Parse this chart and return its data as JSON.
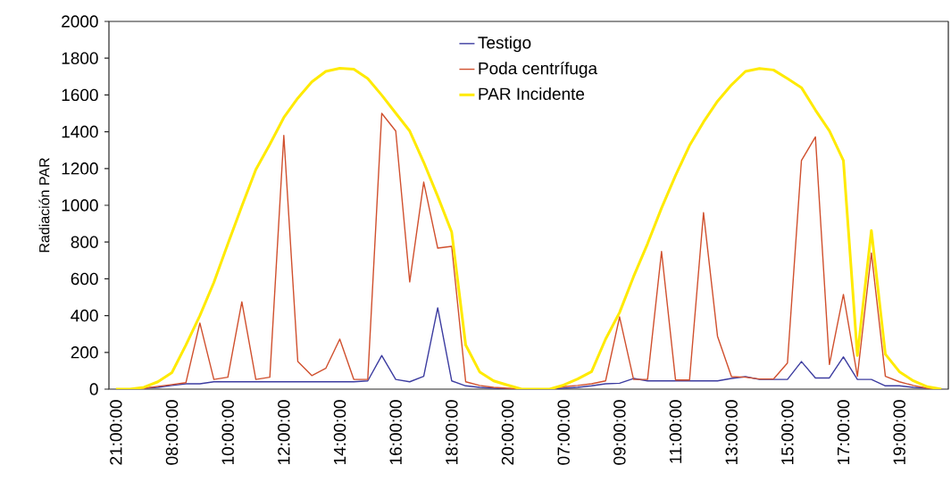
{
  "chart_data": {
    "type": "line",
    "ylabel": "Radiación PAR",
    "categories": [
      "21:00:00",
      null,
      null,
      null,
      "08:00:00",
      null,
      null,
      null,
      "10:00:00",
      null,
      null,
      null,
      "12:00:00",
      null,
      null,
      null,
      "14:00:00",
      null,
      null,
      null,
      "16:00:00",
      null,
      null,
      null,
      "18:00:00",
      null,
      null,
      null,
      "20:00:00",
      null,
      null,
      null,
      "07:00:00",
      null,
      null,
      null,
      "09:00:00",
      null,
      null,
      null,
      "11:00:00",
      null,
      null,
      null,
      "13:00:00",
      null,
      null,
      null,
      "15:00:00",
      null,
      null,
      null,
      "17:00:00",
      null,
      null,
      null,
      "19:00:00",
      null,
      null,
      null
    ],
    "series": [
      {
        "name": "Testigo",
        "color": "#3c3ca0",
        "values": [
          null,
          null,
          5,
          10,
          20,
          29,
          29,
          40,
          40,
          40,
          40,
          40,
          40,
          40,
          40,
          40,
          40,
          40,
          45,
          183,
          53,
          40,
          70,
          442,
          45,
          18,
          10,
          5,
          0,
          0,
          0,
          0,
          5,
          10,
          18,
          29,
          32,
          58,
          45,
          45,
          45,
          45,
          45,
          45,
          58,
          68,
          53,
          53,
          53,
          150,
          61,
          61,
          175,
          53,
          53,
          18,
          18,
          10,
          5,
          0
        ]
      },
      {
        "name": "Poda centrífuga",
        "color": "#d0502e",
        "values": [
          0,
          0,
          5,
          15,
          25,
          35,
          360,
          53,
          65,
          475,
          53,
          65,
          1380,
          150,
          74,
          113,
          272,
          53,
          53,
          1500,
          1404,
          583,
          1126,
          767,
          777,
          40,
          20,
          10,
          5,
          0,
          0,
          0,
          13,
          20,
          29,
          45,
          393,
          53,
          53,
          749,
          50,
          50,
          960,
          288,
          68,
          65,
          55,
          55,
          142,
          1243,
          1372,
          134,
          515,
          70,
          741,
          70,
          40,
          20,
          5,
          0
        ]
      },
      {
        "name": "PAR Incidente",
        "color": "#ffea00",
        "values": [
          0,
          0,
          10,
          40,
          90,
          240,
          400,
          580,
          790,
          995,
          1194,
          1331,
          1477,
          1583,
          1671,
          1728,
          1745,
          1740,
          1689,
          1599,
          1501,
          1404,
          1234,
          1049,
          854,
          240,
          94,
          45,
          22,
          0,
          0,
          0,
          22,
          55,
          95,
          272,
          417,
          612,
          791,
          985,
          1162,
          1325,
          1453,
          1566,
          1655,
          1728,
          1744,
          1736,
          1689,
          1640,
          1518,
          1405,
          1243,
          183,
          863,
          190,
          95,
          45,
          13,
          0
        ]
      }
    ],
    "ylim": [
      0,
      2000
    ],
    "yticks": [
      0,
      200,
      400,
      600,
      800,
      1000,
      1200,
      1400,
      1600,
      1800,
      2000
    ],
    "grid": false,
    "legend": "top",
    "marker": "none",
    "line_style": "solid"
  }
}
